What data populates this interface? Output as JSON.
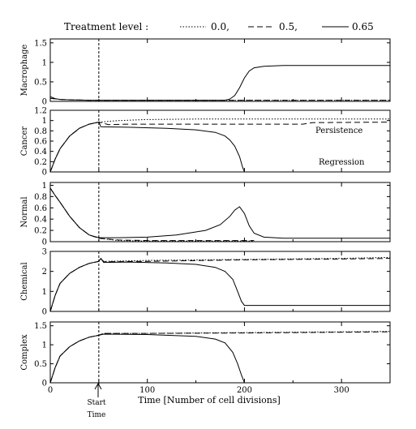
{
  "legend": {
    "label": "Treatment level :",
    "entries": [
      {
        "label": "0.0,",
        "style": "dotted"
      },
      {
        "label": "0.5,",
        "style": "dashed"
      },
      {
        "label": "0.65",
        "style": "solid"
      }
    ]
  },
  "annotations": {
    "persistence": "Persistence",
    "regression": "Regression",
    "start_line1": "Start",
    "start_line2": "Time"
  },
  "chart_data": {
    "type": "line",
    "xlabel": "Time [Number of cell divisions]",
    "xlim": [
      0,
      350
    ],
    "xticks": [
      0,
      100,
      200,
      300
    ],
    "start_time": 50,
    "panels": [
      {
        "ylabel": "Macrophage",
        "ylim": [
          0,
          1.6
        ],
        "yticks": [
          "0",
          "0.5",
          "1",
          "1.5"
        ],
        "yticks_values": [
          0,
          0.5,
          1,
          1.5
        ],
        "series": [
          {
            "style": "dotted",
            "points": [
              [
                0,
                0.08
              ],
              [
                10,
                0.05
              ],
              [
                20,
                0.04
              ],
              [
                40,
                0.03
              ],
              [
                50,
                0.03
              ],
              [
                80,
                0.03
              ],
              [
                150,
                0.03
              ],
              [
                250,
                0.03
              ],
              [
                350,
                0.03
              ]
            ]
          },
          {
            "style": "dashed",
            "points": [
              [
                0,
                0.08
              ],
              [
                10,
                0.05
              ],
              [
                20,
                0.04
              ],
              [
                40,
                0.03
              ],
              [
                50,
                0.03
              ],
              [
                80,
                0.03
              ],
              [
                150,
                0.03
              ],
              [
                250,
                0.03
              ],
              [
                350,
                0.03
              ]
            ]
          },
          {
            "style": "solid",
            "points": [
              [
                0,
                0.12
              ],
              [
                5,
                0.07
              ],
              [
                10,
                0.05
              ],
              [
                20,
                0.04
              ],
              [
                40,
                0.03
              ],
              [
                100,
                0.03
              ],
              [
                180,
                0.03
              ],
              [
                185,
                0.06
              ],
              [
                190,
                0.15
              ],
              [
                195,
                0.35
              ],
              [
                200,
                0.6
              ],
              [
                205,
                0.78
              ],
              [
                210,
                0.86
              ],
              [
                220,
                0.9
              ],
              [
                240,
                0.92
              ],
              [
                350,
                0.92
              ]
            ]
          }
        ]
      },
      {
        "ylabel": "Cancer",
        "ylim": [
          0,
          1.2
        ],
        "yticks": [
          "0",
          "0.2",
          "0.4",
          "0.6",
          "0.8",
          "1",
          "1.2"
        ],
        "yticks_values": [
          0,
          0.2,
          0.4,
          0.6,
          0.8,
          1,
          1.2
        ],
        "series": [
          {
            "style": "dotted",
            "points": [
              [
                0,
                0.0
              ],
              [
                5,
                0.25
              ],
              [
                10,
                0.45
              ],
              [
                20,
                0.7
              ],
              [
                30,
                0.85
              ],
              [
                40,
                0.93
              ],
              [
                50,
                0.97
              ],
              [
                70,
                1.0
              ],
              [
                100,
                1.02
              ],
              [
                150,
                1.03
              ],
              [
                200,
                1.03
              ],
              [
                350,
                1.03
              ]
            ]
          },
          {
            "style": "dashed",
            "points": [
              [
                0,
                0.0
              ],
              [
                5,
                0.25
              ],
              [
                10,
                0.45
              ],
              [
                20,
                0.7
              ],
              [
                30,
                0.85
              ],
              [
                40,
                0.93
              ],
              [
                50,
                0.97
              ],
              [
                60,
                0.92
              ],
              [
                80,
                0.93
              ],
              [
                150,
                0.93
              ],
              [
                200,
                0.93
              ],
              [
                260,
                0.93
              ],
              [
                270,
                0.96
              ],
              [
                350,
                0.97
              ]
            ]
          },
          {
            "style": "solid",
            "points": [
              [
                0,
                0.0
              ],
              [
                5,
                0.25
              ],
              [
                10,
                0.45
              ],
              [
                20,
                0.7
              ],
              [
                30,
                0.85
              ],
              [
                40,
                0.93
              ],
              [
                50,
                0.97
              ],
              [
                52,
                0.88
              ],
              [
                80,
                0.87
              ],
              [
                120,
                0.85
              ],
              [
                150,
                0.82
              ],
              [
                170,
                0.77
              ],
              [
                180,
                0.7
              ],
              [
                185,
                0.62
              ],
              [
                190,
                0.5
              ],
              [
                195,
                0.3
              ],
              [
                198,
                0.1
              ],
              [
                200,
                0.0
              ]
            ]
          }
        ]
      },
      {
        "ylabel": "Normal",
        "ylim": [
          0,
          1.05
        ],
        "yticks": [
          "0",
          "0.2",
          "0.4",
          "0.6",
          "0.8",
          "1"
        ],
        "yticks_values": [
          0,
          0.2,
          0.4,
          0.6,
          0.8,
          1
        ],
        "series": [
          {
            "style": "dotted",
            "points": [
              [
                0,
                0.95
              ],
              [
                5,
                0.82
              ],
              [
                10,
                0.7
              ],
              [
                20,
                0.45
              ],
              [
                30,
                0.25
              ],
              [
                40,
                0.12
              ],
              [
                50,
                0.06
              ],
              [
                70,
                0.02
              ],
              [
                100,
                0.01
              ],
              [
                150,
                0.01
              ],
              [
                210,
                0.01
              ]
            ]
          },
          {
            "style": "dashed",
            "points": [
              [
                0,
                0.95
              ],
              [
                5,
                0.82
              ],
              [
                10,
                0.7
              ],
              [
                20,
                0.45
              ],
              [
                30,
                0.25
              ],
              [
                40,
                0.12
              ],
              [
                50,
                0.06
              ],
              [
                70,
                0.03
              ],
              [
                100,
                0.02
              ],
              [
                150,
                0.02
              ],
              [
                210,
                0.02
              ]
            ]
          },
          {
            "style": "solid",
            "points": [
              [
                0,
                0.95
              ],
              [
                5,
                0.82
              ],
              [
                10,
                0.7
              ],
              [
                20,
                0.45
              ],
              [
                30,
                0.25
              ],
              [
                40,
                0.12
              ],
              [
                50,
                0.07
              ],
              [
                70,
                0.07
              ],
              [
                100,
                0.08
              ],
              [
                130,
                0.12
              ],
              [
                160,
                0.2
              ],
              [
                175,
                0.3
              ],
              [
                185,
                0.45
              ],
              [
                190,
                0.56
              ],
              [
                195,
                0.62
              ],
              [
                200,
                0.5
              ],
              [
                205,
                0.28
              ],
              [
                210,
                0.15
              ],
              [
                220,
                0.08
              ],
              [
                240,
                0.06
              ],
              [
                350,
                0.06
              ]
            ]
          }
        ]
      },
      {
        "ylabel": "Chemical",
        "ylim": [
          0,
          3
        ],
        "yticks": [
          "0",
          "1",
          "2",
          "3"
        ],
        "yticks_values": [
          0,
          1,
          2,
          3
        ],
        "series": [
          {
            "style": "dotted",
            "points": [
              [
                0,
                0.0
              ],
              [
                5,
                0.8
              ],
              [
                10,
                1.4
              ],
              [
                20,
                1.9
              ],
              [
                30,
                2.2
              ],
              [
                40,
                2.4
              ],
              [
                50,
                2.5
              ],
              [
                52,
                2.65
              ],
              [
                55,
                2.5
              ],
              [
                100,
                2.55
              ],
              [
                200,
                2.6
              ],
              [
                300,
                2.65
              ],
              [
                350,
                2.7
              ]
            ]
          },
          {
            "style": "dashed",
            "points": [
              [
                0,
                0.0
              ],
              [
                5,
                0.8
              ],
              [
                10,
                1.4
              ],
              [
                20,
                1.9
              ],
              [
                30,
                2.2
              ],
              [
                40,
                2.4
              ],
              [
                50,
                2.5
              ],
              [
                52,
                2.65
              ],
              [
                55,
                2.48
              ],
              [
                100,
                2.5
              ],
              [
                200,
                2.58
              ],
              [
                300,
                2.62
              ],
              [
                350,
                2.65
              ]
            ]
          },
          {
            "style": "solid",
            "points": [
              [
                0,
                0.0
              ],
              [
                5,
                0.8
              ],
              [
                10,
                1.4
              ],
              [
                20,
                1.9
              ],
              [
                30,
                2.2
              ],
              [
                40,
                2.4
              ],
              [
                50,
                2.5
              ],
              [
                52,
                2.65
              ],
              [
                55,
                2.45
              ],
              [
                80,
                2.47
              ],
              [
                120,
                2.42
              ],
              [
                150,
                2.35
              ],
              [
                170,
                2.2
              ],
              [
                180,
                2.0
              ],
              [
                188,
                1.6
              ],
              [
                193,
                1.0
              ],
              [
                197,
                0.5
              ],
              [
                200,
                0.3
              ],
              [
                350,
                0.3
              ]
            ]
          }
        ]
      },
      {
        "ylabel": "Complex",
        "ylim": [
          0,
          1.6
        ],
        "yticks": [
          "0",
          "0.5",
          "1",
          "1.5"
        ],
        "yticks_values": [
          0,
          0.5,
          1,
          1.5
        ],
        "series": [
          {
            "style": "dotted",
            "points": [
              [
                0,
                0.0
              ],
              [
                5,
                0.4
              ],
              [
                10,
                0.7
              ],
              [
                20,
                0.95
              ],
              [
                30,
                1.1
              ],
              [
                40,
                1.2
              ],
              [
                50,
                1.25
              ],
              [
                55,
                1.3
              ],
              [
                100,
                1.3
              ],
              [
                200,
                1.32
              ],
              [
                350,
                1.35
              ]
            ]
          },
          {
            "style": "dashed",
            "points": [
              [
                0,
                0.0
              ],
              [
                5,
                0.4
              ],
              [
                10,
                0.7
              ],
              [
                20,
                0.95
              ],
              [
                30,
                1.1
              ],
              [
                40,
                1.2
              ],
              [
                50,
                1.25
              ],
              [
                55,
                1.3
              ],
              [
                100,
                1.3
              ],
              [
                200,
                1.31
              ],
              [
                350,
                1.34
              ]
            ]
          },
          {
            "style": "solid",
            "points": [
              [
                0,
                0.0
              ],
              [
                5,
                0.4
              ],
              [
                10,
                0.7
              ],
              [
                20,
                0.95
              ],
              [
                30,
                1.1
              ],
              [
                40,
                1.2
              ],
              [
                50,
                1.25
              ],
              [
                55,
                1.28
              ],
              [
                100,
                1.27
              ],
              [
                150,
                1.22
              ],
              [
                170,
                1.15
              ],
              [
                180,
                1.05
              ],
              [
                188,
                0.8
              ],
              [
                193,
                0.5
              ],
              [
                197,
                0.2
              ],
              [
                200,
                0.0
              ]
            ]
          }
        ]
      }
    ]
  }
}
